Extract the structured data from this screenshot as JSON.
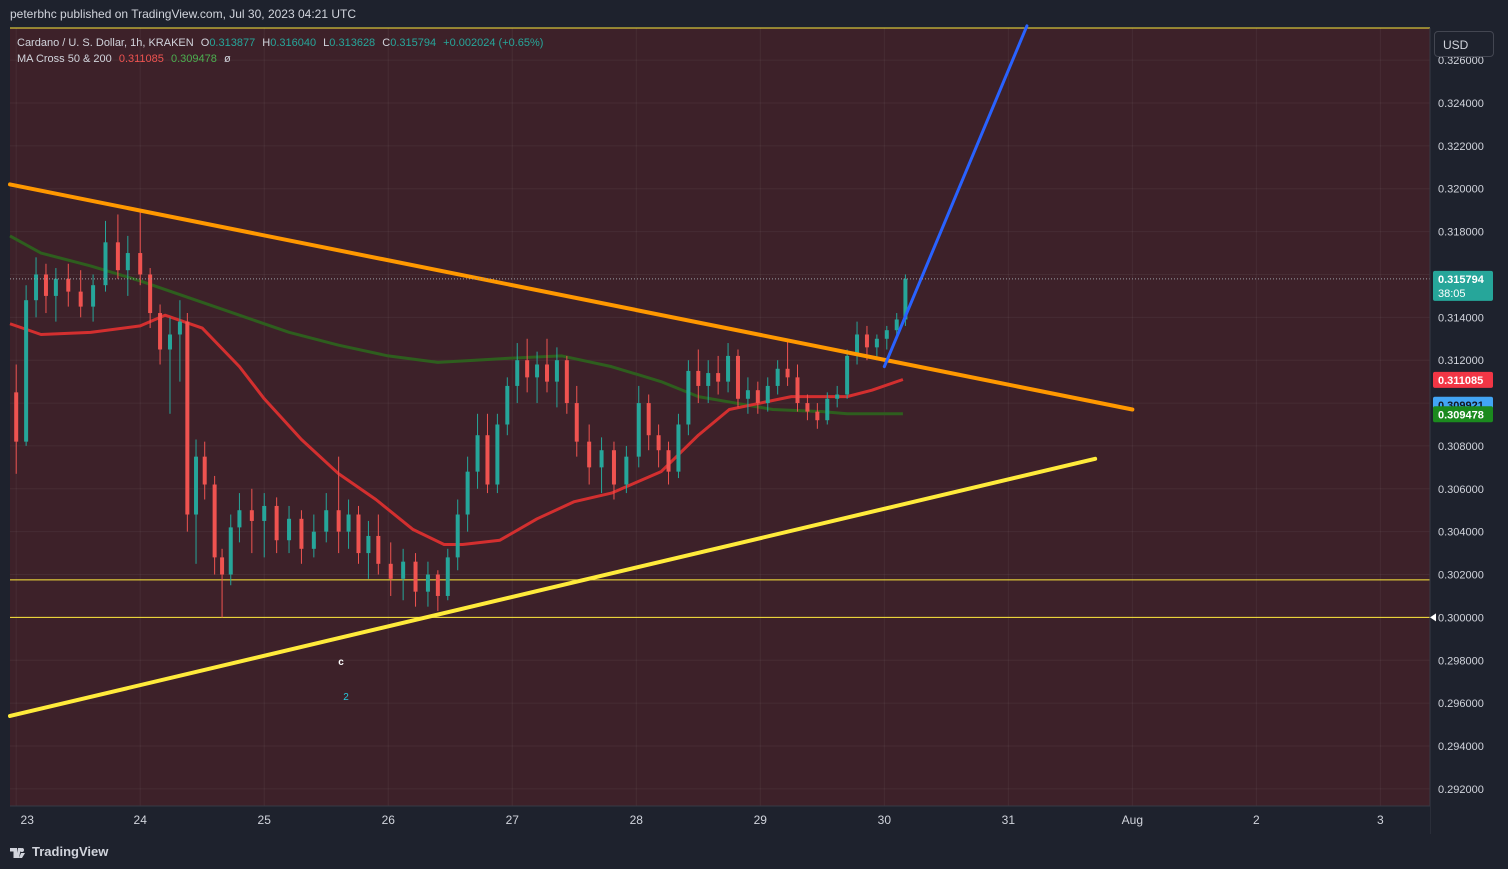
{
  "header": {
    "publisher_line": "peterbhc published on TradingView.com, Jul 30, 2023 04:21 UTC"
  },
  "legend": {
    "symbol": "Cardano / U. S. Dollar, 1h, KRAKEN",
    "open_label": "O",
    "open": "0.313877",
    "high_label": "H",
    "high": "0.316040",
    "low_label": "L",
    "low": "0.313628",
    "close_label": "C",
    "close": "0.315794",
    "change": "+0.002024 (+0.65%)",
    "indicator": "MA Cross 50 & 200",
    "ma50": "0.311085",
    "ma200": "0.309478",
    "settings_glyph": "ø"
  },
  "currency_button": "USD",
  "footer": {
    "brand": "TradingView"
  },
  "annotations": {
    "wave_c": "c",
    "wave_2": "2"
  },
  "price_badges": {
    "last_price": "0.315794",
    "countdown": "38:05",
    "ma50": "0.311085",
    "crosshair": "0.309921",
    "ma200": "0.309478",
    "level_marker": "0.300000"
  },
  "colors": {
    "background": "#3d2129",
    "bull": "#26a69a",
    "bear": "#ef5350",
    "ma50": "#d32f2f",
    "ma200": "#2e5e1e",
    "resistance": "#ff9800",
    "support": "#ffeb3b",
    "projection": "#2962ff",
    "hline": "#ffeb3b"
  },
  "chart_data": {
    "type": "candlestick",
    "title": "Cardano / U. S. Dollar, 1h, KRAKEN",
    "x_ticks": [
      "23",
      "24",
      "25",
      "26",
      "27",
      "28",
      "29",
      "30",
      "31",
      "Aug",
      "2",
      "3"
    ],
    "y_ticks": [
      "0.326000",
      "0.324000",
      "0.322000",
      "0.320000",
      "0.318000",
      "0.316000",
      "0.314000",
      "0.312000",
      "0.310000",
      "0.308000",
      "0.306000",
      "0.304000",
      "0.302000",
      "0.300000",
      "0.298000",
      "0.296000",
      "0.294000",
      "0.292000"
    ],
    "ylim": [
      0.2912,
      0.3275
    ],
    "x_range_days": [
      22.95,
      34.4
    ],
    "horizontal_levels": [
      0.3275,
      0.30175,
      0.3
    ],
    "trendlines": [
      {
        "name": "resistance",
        "x": [
          22.95,
          32.0
        ],
        "y": [
          0.3202,
          0.3097
        ]
      },
      {
        "name": "support",
        "x": [
          22.95,
          31.7
        ],
        "y": [
          0.2954,
          0.3074
        ]
      },
      {
        "name": "projection",
        "x": [
          30.0,
          31.15
        ],
        "y": [
          0.3117,
          0.3276
        ]
      }
    ],
    "ma50": {
      "x": [
        22.95,
        23.2,
        23.6,
        24.0,
        24.2,
        24.5,
        24.8,
        25.0,
        25.3,
        25.6,
        25.9,
        26.2,
        26.45,
        26.6,
        26.9,
        27.2,
        27.5,
        27.8,
        28.0,
        28.2,
        28.5,
        28.75,
        29.0,
        29.25,
        29.5,
        29.7,
        29.9,
        30.1,
        30.15
      ],
      "y": [
        0.3137,
        0.3132,
        0.3133,
        0.3136,
        0.3141,
        0.3135,
        0.3117,
        0.3102,
        0.3083,
        0.3067,
        0.3055,
        0.3041,
        0.3034,
        0.3034,
        0.3036,
        0.3046,
        0.3054,
        0.3058,
        0.3063,
        0.3068,
        0.3085,
        0.3097,
        0.31,
        0.3103,
        0.3103,
        0.3103,
        0.3106,
        0.311,
        0.3111
      ]
    },
    "ma200": {
      "x": [
        22.95,
        23.2,
        23.6,
        24.0,
        24.4,
        24.8,
        25.2,
        25.6,
        26.0,
        26.4,
        26.7,
        27.0,
        27.4,
        27.8,
        28.2,
        28.5,
        28.8,
        29.1,
        29.5,
        29.7,
        29.9,
        30.15
      ],
      "y": [
        0.3178,
        0.317,
        0.3164,
        0.3157,
        0.3149,
        0.3141,
        0.3133,
        0.3127,
        0.3122,
        0.3119,
        0.312,
        0.3121,
        0.3122,
        0.3117,
        0.311,
        0.3103,
        0.31,
        0.3097,
        0.3096,
        0.3095,
        0.3095,
        0.3095
      ]
    },
    "ohlc": [
      {
        "t": 23.0,
        "o": 0.3105,
        "h": 0.3118,
        "l": 0.3067,
        "c": 0.3082
      },
      {
        "t": 23.08,
        "o": 0.3082,
        "h": 0.3155,
        "l": 0.308,
        "c": 0.3148
      },
      {
        "t": 23.16,
        "o": 0.3148,
        "h": 0.3168,
        "l": 0.314,
        "c": 0.316
      },
      {
        "t": 23.24,
        "o": 0.316,
        "h": 0.3165,
        "l": 0.3142,
        "c": 0.315
      },
      {
        "t": 23.32,
        "o": 0.315,
        "h": 0.3163,
        "l": 0.3138,
        "c": 0.3158
      },
      {
        "t": 23.42,
        "o": 0.3158,
        "h": 0.3165,
        "l": 0.3145,
        "c": 0.3152
      },
      {
        "t": 23.52,
        "o": 0.3152,
        "h": 0.3162,
        "l": 0.314,
        "c": 0.3145
      },
      {
        "t": 23.62,
        "o": 0.3145,
        "h": 0.316,
        "l": 0.3138,
        "c": 0.3155
      },
      {
        "t": 23.72,
        "o": 0.3155,
        "h": 0.3185,
        "l": 0.3152,
        "c": 0.3175
      },
      {
        "t": 23.82,
        "o": 0.3175,
        "h": 0.3188,
        "l": 0.3158,
        "c": 0.3162
      },
      {
        "t": 23.9,
        "o": 0.3162,
        "h": 0.3178,
        "l": 0.315,
        "c": 0.317
      },
      {
        "t": 24.0,
        "o": 0.317,
        "h": 0.3189,
        "l": 0.3155,
        "c": 0.316
      },
      {
        "t": 24.08,
        "o": 0.316,
        "h": 0.3163,
        "l": 0.3135,
        "c": 0.3142
      },
      {
        "t": 24.16,
        "o": 0.3142,
        "h": 0.3146,
        "l": 0.3118,
        "c": 0.3125
      },
      {
        "t": 24.24,
        "o": 0.3125,
        "h": 0.314,
        "l": 0.3095,
        "c": 0.3132
      },
      {
        "t": 24.32,
        "o": 0.3132,
        "h": 0.3148,
        "l": 0.311,
        "c": 0.3138
      },
      {
        "t": 24.38,
        "o": 0.3138,
        "h": 0.3142,
        "l": 0.304,
        "c": 0.3048
      },
      {
        "t": 24.45,
        "o": 0.3048,
        "h": 0.3083,
        "l": 0.3025,
        "c": 0.3075
      },
      {
        "t": 24.52,
        "o": 0.3075,
        "h": 0.3082,
        "l": 0.3055,
        "c": 0.3062
      },
      {
        "t": 24.6,
        "o": 0.3062,
        "h": 0.3066,
        "l": 0.302,
        "c": 0.3028
      },
      {
        "t": 24.66,
        "o": 0.3028,
        "h": 0.3032,
        "l": 0.3,
        "c": 0.302
      },
      {
        "t": 24.73,
        "o": 0.302,
        "h": 0.3048,
        "l": 0.3015,
        "c": 0.3042
      },
      {
        "t": 24.8,
        "o": 0.3042,
        "h": 0.3058,
        "l": 0.3035,
        "c": 0.305
      },
      {
        "t": 24.9,
        "o": 0.305,
        "h": 0.306,
        "l": 0.303,
        "c": 0.3045
      },
      {
        "t": 25.0,
        "o": 0.3045,
        "h": 0.3058,
        "l": 0.3028,
        "c": 0.3052
      },
      {
        "t": 25.1,
        "o": 0.3052,
        "h": 0.3056,
        "l": 0.303,
        "c": 0.3036
      },
      {
        "t": 25.2,
        "o": 0.3036,
        "h": 0.3052,
        "l": 0.303,
        "c": 0.3046
      },
      {
        "t": 25.3,
        "o": 0.3046,
        "h": 0.305,
        "l": 0.3025,
        "c": 0.3032
      },
      {
        "t": 25.4,
        "o": 0.3032,
        "h": 0.3048,
        "l": 0.3028,
        "c": 0.304
      },
      {
        "t": 25.5,
        "o": 0.304,
        "h": 0.3058,
        "l": 0.3035,
        "c": 0.305
      },
      {
        "t": 25.6,
        "o": 0.305,
        "h": 0.3075,
        "l": 0.303,
        "c": 0.304
      },
      {
        "t": 25.68,
        "o": 0.304,
        "h": 0.3055,
        "l": 0.3032,
        "c": 0.3048
      },
      {
        "t": 25.76,
        "o": 0.3048,
        "h": 0.3052,
        "l": 0.3025,
        "c": 0.303
      },
      {
        "t": 25.84,
        "o": 0.303,
        "h": 0.3045,
        "l": 0.3018,
        "c": 0.3038
      },
      {
        "t": 25.92,
        "o": 0.3038,
        "h": 0.3048,
        "l": 0.302,
        "c": 0.3025
      },
      {
        "t": 26.02,
        "o": 0.3025,
        "h": 0.3035,
        "l": 0.301,
        "c": 0.3018
      },
      {
        "t": 26.12,
        "o": 0.3018,
        "h": 0.3032,
        "l": 0.3008,
        "c": 0.3026
      },
      {
        "t": 26.22,
        "o": 0.3026,
        "h": 0.303,
        "l": 0.3005,
        "c": 0.3012
      },
      {
        "t": 26.32,
        "o": 0.3012,
        "h": 0.3026,
        "l": 0.3005,
        "c": 0.302
      },
      {
        "t": 26.4,
        "o": 0.302,
        "h": 0.3022,
        "l": 0.3003,
        "c": 0.301
      },
      {
        "t": 26.48,
        "o": 0.301,
        "h": 0.3032,
        "l": 0.3008,
        "c": 0.3028
      },
      {
        "t": 26.56,
        "o": 0.3028,
        "h": 0.3055,
        "l": 0.3022,
        "c": 0.3048
      },
      {
        "t": 26.64,
        "o": 0.3048,
        "h": 0.3075,
        "l": 0.304,
        "c": 0.3068
      },
      {
        "t": 26.72,
        "o": 0.3068,
        "h": 0.3095,
        "l": 0.306,
        "c": 0.3085
      },
      {
        "t": 26.8,
        "o": 0.3085,
        "h": 0.3095,
        "l": 0.3058,
        "c": 0.3062
      },
      {
        "t": 26.88,
        "o": 0.3062,
        "h": 0.3095,
        "l": 0.3058,
        "c": 0.309
      },
      {
        "t": 26.96,
        "o": 0.309,
        "h": 0.3112,
        "l": 0.3085,
        "c": 0.3108
      },
      {
        "t": 27.04,
        "o": 0.3108,
        "h": 0.3128,
        "l": 0.31,
        "c": 0.312
      },
      {
        "t": 27.12,
        "o": 0.312,
        "h": 0.313,
        "l": 0.3105,
        "c": 0.3112
      },
      {
        "t": 27.2,
        "o": 0.3112,
        "h": 0.3124,
        "l": 0.31,
        "c": 0.3118
      },
      {
        "t": 27.28,
        "o": 0.3118,
        "h": 0.313,
        "l": 0.3105,
        "c": 0.311
      },
      {
        "t": 27.36,
        "o": 0.311,
        "h": 0.3126,
        "l": 0.3098,
        "c": 0.312
      },
      {
        "t": 27.44,
        "o": 0.312,
        "h": 0.3122,
        "l": 0.3095,
        "c": 0.31
      },
      {
        "t": 27.52,
        "o": 0.31,
        "h": 0.3108,
        "l": 0.3075,
        "c": 0.3082
      },
      {
        "t": 27.62,
        "o": 0.3082,
        "h": 0.309,
        "l": 0.3062,
        "c": 0.307
      },
      {
        "t": 27.72,
        "o": 0.307,
        "h": 0.3084,
        "l": 0.3058,
        "c": 0.3078
      },
      {
        "t": 27.82,
        "o": 0.3078,
        "h": 0.3082,
        "l": 0.3055,
        "c": 0.3062
      },
      {
        "t": 27.92,
        "o": 0.3062,
        "h": 0.308,
        "l": 0.3058,
        "c": 0.3075
      },
      {
        "t": 28.02,
        "o": 0.3075,
        "h": 0.3108,
        "l": 0.307,
        "c": 0.31
      },
      {
        "t": 28.1,
        "o": 0.31,
        "h": 0.3104,
        "l": 0.3078,
        "c": 0.3085
      },
      {
        "t": 28.18,
        "o": 0.3085,
        "h": 0.309,
        "l": 0.307,
        "c": 0.3078
      },
      {
        "t": 28.26,
        "o": 0.3078,
        "h": 0.3082,
        "l": 0.3062,
        "c": 0.3068
      },
      {
        "t": 28.34,
        "o": 0.3068,
        "h": 0.3095,
        "l": 0.3065,
        "c": 0.309
      },
      {
        "t": 28.42,
        "o": 0.309,
        "h": 0.312,
        "l": 0.3085,
        "c": 0.3115
      },
      {
        "t": 28.5,
        "o": 0.3115,
        "h": 0.3125,
        "l": 0.31,
        "c": 0.3108
      },
      {
        "t": 28.58,
        "o": 0.3108,
        "h": 0.312,
        "l": 0.31,
        "c": 0.3114
      },
      {
        "t": 28.66,
        "o": 0.3114,
        "h": 0.3122,
        "l": 0.3104,
        "c": 0.311
      },
      {
        "t": 28.74,
        "o": 0.311,
        "h": 0.3128,
        "l": 0.3105,
        "c": 0.3122
      },
      {
        "t": 28.82,
        "o": 0.3122,
        "h": 0.3125,
        "l": 0.3098,
        "c": 0.3102
      },
      {
        "t": 28.9,
        "o": 0.3102,
        "h": 0.3112,
        "l": 0.3095,
        "c": 0.3106
      },
      {
        "t": 28.98,
        "o": 0.3106,
        "h": 0.311,
        "l": 0.3095,
        "c": 0.31
      },
      {
        "t": 29.06,
        "o": 0.31,
        "h": 0.3112,
        "l": 0.3096,
        "c": 0.3108
      },
      {
        "t": 29.14,
        "o": 0.3108,
        "h": 0.312,
        "l": 0.3104,
        "c": 0.3116
      },
      {
        "t": 29.22,
        "o": 0.3116,
        "h": 0.313,
        "l": 0.3108,
        "c": 0.3112
      },
      {
        "t": 29.3,
        "o": 0.3112,
        "h": 0.3118,
        "l": 0.3096,
        "c": 0.31
      },
      {
        "t": 29.38,
        "o": 0.31,
        "h": 0.3104,
        "l": 0.3092,
        "c": 0.3096
      },
      {
        "t": 29.46,
        "o": 0.3096,
        "h": 0.31,
        "l": 0.3088,
        "c": 0.3092
      },
      {
        "t": 29.54,
        "o": 0.3092,
        "h": 0.3105,
        "l": 0.309,
        "c": 0.3102
      },
      {
        "t": 29.62,
        "o": 0.3102,
        "h": 0.3108,
        "l": 0.3098,
        "c": 0.3104
      },
      {
        "t": 29.7,
        "o": 0.3104,
        "h": 0.3125,
        "l": 0.3102,
        "c": 0.3122
      },
      {
        "t": 29.78,
        "o": 0.3122,
        "h": 0.3138,
        "l": 0.3118,
        "c": 0.3132
      },
      {
        "t": 29.86,
        "o": 0.3132,
        "h": 0.3136,
        "l": 0.312,
        "c": 0.3126
      },
      {
        "t": 29.94,
        "o": 0.3126,
        "h": 0.3132,
        "l": 0.312,
        "c": 0.313
      },
      {
        "t": 30.02,
        "o": 0.313,
        "h": 0.3136,
        "l": 0.3125,
        "c": 0.3134
      },
      {
        "t": 30.1,
        "o": 0.3134,
        "h": 0.3142,
        "l": 0.313,
        "c": 0.3139
      },
      {
        "t": 30.17,
        "o": 0.3139,
        "h": 0.316,
        "l": 0.3136,
        "c": 0.3158
      }
    ]
  }
}
